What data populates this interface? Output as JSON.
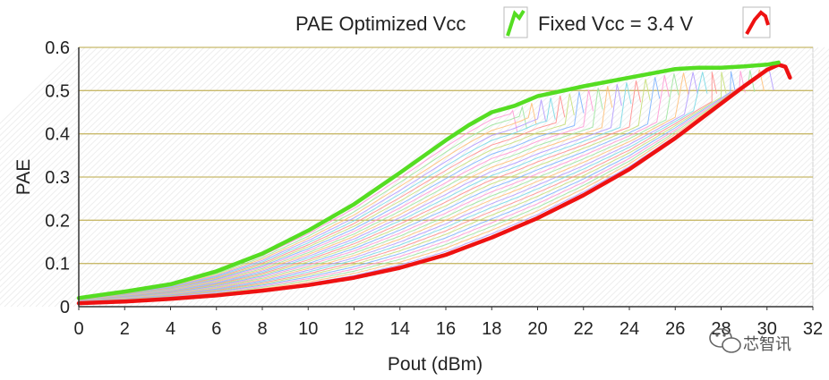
{
  "chart_data": {
    "type": "line",
    "title": "",
    "xlabel": "Pout (dBm)",
    "ylabel": "PAE",
    "xlim": [
      0,
      32
    ],
    "ylim": [
      0,
      0.6
    ],
    "x_ticks": [
      "0",
      "2",
      "4",
      "6",
      "8",
      "10",
      "12",
      "14",
      "16",
      "18",
      "20",
      "22",
      "24",
      "26",
      "28",
      "30",
      "32"
    ],
    "y_ticks": [
      "0",
      "0.1",
      "0.2",
      "0.3",
      "0.4",
      "0.5",
      "0.6"
    ],
    "grid": "horizontal",
    "legend": [
      {
        "label": "PAE Optimized Vcc",
        "color": "#55dd22"
      },
      {
        "label": "Fixed Vcc = 3.4 V",
        "color": "#ee1111"
      }
    ],
    "series": [
      {
        "name": "PAE Optimized Vcc",
        "color": "#55dd22",
        "x": [
          0,
          2,
          4,
          6,
          8,
          10,
          12,
          14,
          16,
          17,
          18,
          19,
          20,
          22,
          24,
          26,
          27,
          28,
          29,
          30,
          30.5
        ],
        "y": [
          0.02,
          0.035,
          0.052,
          0.082,
          0.123,
          0.176,
          0.237,
          0.31,
          0.385,
          0.42,
          0.45,
          0.465,
          0.487,
          0.51,
          0.53,
          0.55,
          0.553,
          0.553,
          0.556,
          0.56,
          0.565
        ]
      },
      {
        "name": "Fixed Vcc = 3.4 V",
        "color": "#ee1111",
        "x": [
          0,
          2,
          4,
          6,
          8,
          10,
          12,
          14,
          16,
          18,
          20,
          22,
          24,
          26,
          28,
          29,
          30,
          30.5,
          30.8,
          31
        ],
        "y": [
          0.008,
          0.012,
          0.018,
          0.026,
          0.037,
          0.05,
          0.067,
          0.09,
          0.12,
          0.16,
          0.205,
          0.258,
          0.318,
          0.39,
          0.47,
          0.51,
          0.548,
          0.56,
          0.555,
          0.53
        ]
      }
    ],
    "family_curves": {
      "description": "Intermediate fixed-Vcc PAE curves between the optimized and 3.4 V traces",
      "count": 28,
      "colors": [
        "#7fb4ff",
        "#ff9ad6",
        "#9ee6a0",
        "#ffc07a",
        "#b49cff",
        "#7ad9e6",
        "#ff8f8f",
        "#c7e07a"
      ]
    }
  },
  "watermark": {
    "text": "芯智讯",
    "icon": "wechat-icon"
  }
}
